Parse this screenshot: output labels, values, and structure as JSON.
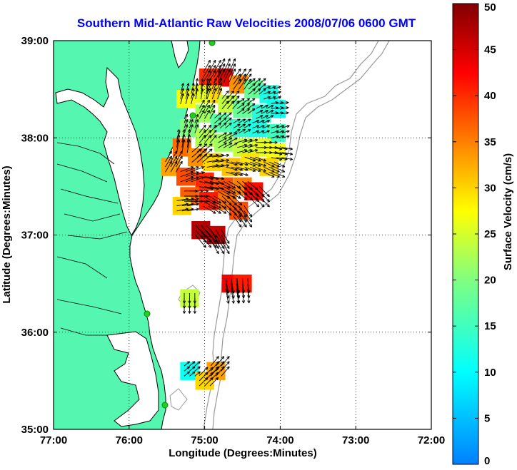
{
  "chart_data": {
    "type": "heatmap",
    "title": "Southern Mid-Atlantic Raw Velocities 2008/07/06 0600 GMT",
    "xlabel": "Longitude (Degrees:Minutes)",
    "ylabel": "Latitude (Degrees:Minutes)",
    "xlim": [
      -77,
      -72
    ],
    "ylim": [
      35,
      39
    ],
    "x_ticks": [
      "77:00",
      "76:00",
      "75:00",
      "74:00",
      "73:00",
      "72:00"
    ],
    "y_ticks": [
      "35:00",
      "36:00",
      "37:00",
      "38:00",
      "39:00"
    ],
    "grid": true,
    "colorbar": {
      "label": "Surface Velocity (cm/s)",
      "min": 0,
      "max": 50,
      "ticks": [
        "0",
        "5",
        "10",
        "15",
        "20",
        "25",
        "30",
        "35",
        "40",
        "45",
        "50"
      ]
    },
    "velocity_cells": [
      {
        "lon": -74.75,
        "lat": 38.62,
        "speed": 44,
        "dir": 65
      },
      {
        "lon": -74.95,
        "lat": 38.62,
        "speed": 40,
        "dir": 60
      },
      {
        "lon": -74.55,
        "lat": 38.55,
        "speed": 34,
        "dir": 55
      },
      {
        "lon": -74.35,
        "lat": 38.5,
        "speed": 18,
        "dir": 40
      },
      {
        "lon": -74.15,
        "lat": 38.45,
        "speed": 12,
        "dir": 20
      },
      {
        "lon": -74.05,
        "lat": 38.3,
        "speed": 11,
        "dir": 10
      },
      {
        "lon": -74.9,
        "lat": 38.45,
        "speed": 30,
        "dir": 70
      },
      {
        "lon": -75.05,
        "lat": 38.45,
        "speed": 26,
        "dir": 80
      },
      {
        "lon": -75.25,
        "lat": 38.4,
        "speed": 27,
        "dir": 75
      },
      {
        "lon": -74.7,
        "lat": 38.35,
        "speed": 24,
        "dir": 50
      },
      {
        "lon": -74.5,
        "lat": 38.3,
        "speed": 18,
        "dir": 35
      },
      {
        "lon": -74.25,
        "lat": 38.25,
        "speed": 13,
        "dir": 25
      },
      {
        "lon": -75.0,
        "lat": 38.25,
        "speed": 22,
        "dir": 60
      },
      {
        "lon": -74.8,
        "lat": 38.15,
        "speed": 17,
        "dir": 40
      },
      {
        "lon": -74.55,
        "lat": 38.1,
        "speed": 14,
        "dir": 30
      },
      {
        "lon": -74.3,
        "lat": 38.1,
        "speed": 12,
        "dir": 20
      },
      {
        "lon": -74.05,
        "lat": 38.05,
        "speed": 15,
        "dir": 15
      },
      {
        "lon": -75.2,
        "lat": 38.1,
        "speed": 20,
        "dir": 70
      },
      {
        "lon": -75.0,
        "lat": 38.0,
        "speed": 23,
        "dir": 50
      },
      {
        "lon": -74.75,
        "lat": 37.95,
        "speed": 22,
        "dir": 30
      },
      {
        "lon": -74.5,
        "lat": 37.9,
        "speed": 24,
        "dir": 15
      },
      {
        "lon": -74.25,
        "lat": 37.9,
        "speed": 26,
        "dir": 0
      },
      {
        "lon": -74.05,
        "lat": 37.85,
        "speed": 27,
        "dir": -10
      },
      {
        "lon": -75.3,
        "lat": 37.9,
        "speed": 36,
        "dir": 80
      },
      {
        "lon": -75.1,
        "lat": 37.8,
        "speed": 34,
        "dir": 40
      },
      {
        "lon": -74.9,
        "lat": 37.75,
        "speed": 30,
        "dir": 10
      },
      {
        "lon": -74.65,
        "lat": 37.7,
        "speed": 31,
        "dir": -15
      },
      {
        "lon": -74.4,
        "lat": 37.75,
        "speed": 29,
        "dir": -20
      },
      {
        "lon": -74.15,
        "lat": 37.7,
        "speed": 30,
        "dir": -25
      },
      {
        "lon": -75.45,
        "lat": 37.7,
        "speed": 33,
        "dir": 60
      },
      {
        "lon": -75.25,
        "lat": 37.6,
        "speed": 38,
        "dir": 20
      },
      {
        "lon": -75.0,
        "lat": 37.55,
        "speed": 40,
        "dir": -10
      },
      {
        "lon": -74.75,
        "lat": 37.5,
        "speed": 38,
        "dir": -30
      },
      {
        "lon": -74.5,
        "lat": 37.5,
        "speed": 35,
        "dir": -40
      },
      {
        "lon": -74.35,
        "lat": 37.45,
        "speed": 42,
        "dir": -45
      },
      {
        "lon": -75.2,
        "lat": 37.4,
        "speed": 37,
        "dir": 0
      },
      {
        "lon": -74.95,
        "lat": 37.35,
        "speed": 41,
        "dir": -30
      },
      {
        "lon": -74.7,
        "lat": 37.35,
        "speed": 36,
        "dir": -45
      },
      {
        "lon": -74.55,
        "lat": 37.25,
        "speed": 38,
        "dir": -55
      },
      {
        "lon": -75.3,
        "lat": 37.3,
        "speed": 30,
        "dir": 10
      },
      {
        "lon": -75.05,
        "lat": 37.05,
        "speed": 47,
        "dir": -50
      },
      {
        "lon": -74.85,
        "lat": 37.0,
        "speed": 46,
        "dir": -60
      },
      {
        "lon": -74.65,
        "lat": 36.5,
        "speed": 43,
        "dir": -80
      },
      {
        "lon": -74.5,
        "lat": 36.5,
        "speed": 41,
        "dir": -85
      },
      {
        "lon": -75.2,
        "lat": 36.35,
        "speed": 24,
        "dir": -90
      },
      {
        "lon": -75.2,
        "lat": 35.6,
        "speed": 11,
        "dir": 40
      },
      {
        "lon": -75.0,
        "lat": 35.5,
        "speed": 30,
        "dir": 45
      },
      {
        "lon": -74.85,
        "lat": 35.6,
        "speed": 33,
        "dir": 50
      }
    ]
  }
}
